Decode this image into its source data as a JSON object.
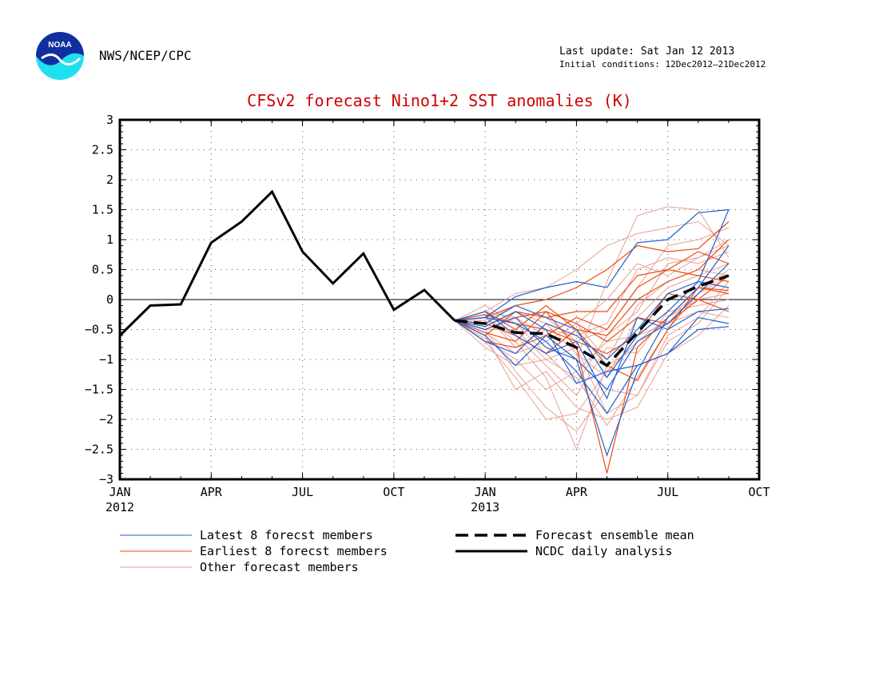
{
  "header": {
    "org": "NWS/NCEP/CPC",
    "last_update": "Last update: Sat Jan 12 2013",
    "initial_conditions": "Initial conditions: 12Dec2012–21Dec2012",
    "logo_text": "NOAA"
  },
  "chart_data": {
    "type": "line",
    "title": "CFSv2 forecast Nino1+2 SST anomalies (K)",
    "xlabel": "",
    "ylabel": "",
    "ylim": [
      -3,
      3
    ],
    "yticks": [
      -3,
      -2.5,
      -2,
      -1.5,
      -1,
      -0.5,
      0,
      0.5,
      1,
      1.5,
      2,
      2.5,
      3
    ],
    "ytick_labels": [
      "−3",
      "−2.5",
      "−2",
      "−1.5",
      "−1",
      "−0.5",
      "0",
      "0.5",
      "1",
      "1.5",
      "2",
      "2.5",
      "3"
    ],
    "xlim": [
      0,
      21
    ],
    "xticks": [
      {
        "x": 0,
        "label": "JAN",
        "year": "2012"
      },
      {
        "x": 3,
        "label": "APR"
      },
      {
        "x": 6,
        "label": "JUL"
      },
      {
        "x": 9,
        "label": "OCT"
      },
      {
        "x": 12,
        "label": "JAN",
        "year": "2013"
      },
      {
        "x": 15,
        "label": "APR"
      },
      {
        "x": 18,
        "label": "JUL"
      },
      {
        "x": 21,
        "label": "OCT"
      }
    ],
    "grid": true,
    "zero_line": true,
    "legend": [
      {
        "label": "Latest 8 forecst members",
        "color": "#1f5fd0",
        "style": "thin"
      },
      {
        "label": "Earliest 8 forecst members",
        "color": "#ee4a10",
        "style": "thin"
      },
      {
        "label": "Other forecast members",
        "color": "#e8a090",
        "style": "thin"
      },
      {
        "label": "Forecast ensemble mean",
        "color": "#000000",
        "style": "dashed"
      },
      {
        "label": "NCDC daily analysis",
        "color": "#000000",
        "style": "thick"
      }
    ],
    "series": [
      {
        "name": "NCDC daily analysis",
        "x": [
          0,
          1,
          2,
          3,
          4,
          5,
          6,
          7,
          8,
          9,
          10,
          11
        ],
        "values": [
          -0.6,
          -0.1,
          -0.08,
          0.95,
          1.3,
          1.8,
          0.8,
          0.27,
          0.77,
          -0.17,
          0.16,
          -0.35
        ]
      },
      {
        "name": "Forecast ensemble mean",
        "x": [
          11,
          12,
          13,
          14,
          15,
          16,
          17,
          18,
          19,
          20
        ],
        "values": [
          -0.35,
          -0.4,
          -0.55,
          -0.57,
          -0.8,
          -1.1,
          -0.55,
          0.0,
          0.22,
          0.4
        ]
      }
    ],
    "members": {
      "x": [
        11,
        12,
        13,
        14,
        15,
        16,
        17,
        18,
        19,
        20
      ],
      "latest": [
        [
          -0.35,
          -0.4,
          -0.1,
          -0.3,
          -0.5,
          -1.3,
          -0.6,
          -0.2,
          0.3,
          1.5
        ],
        [
          -0.35,
          -0.3,
          0.05,
          0.2,
          0.3,
          0.2,
          0.95,
          1.0,
          1.45,
          1.5
        ],
        [
          -0.35,
          -0.6,
          -1.1,
          -0.6,
          -1.0,
          -2.6,
          -1.2,
          -0.3,
          0.2,
          0.9
        ],
        [
          -0.35,
          -0.3,
          -0.4,
          -0.7,
          -1.2,
          -1.9,
          -1.1,
          -0.9,
          -0.3,
          -0.4
        ],
        [
          -0.35,
          -0.5,
          -0.3,
          -0.8,
          -1.0,
          -1.5,
          -0.7,
          -0.4,
          0.1,
          0.6
        ],
        [
          -0.35,
          -0.2,
          -0.6,
          -0.9,
          -0.7,
          -1.65,
          -0.3,
          -0.5,
          -0.2,
          -0.15
        ],
        [
          -0.35,
          -0.45,
          -0.2,
          -0.5,
          -1.4,
          -1.2,
          -1.1,
          -0.9,
          -0.5,
          -0.45
        ],
        [
          -0.35,
          -0.7,
          -0.9,
          -0.4,
          -0.6,
          -1.0,
          -0.5,
          0.1,
          0.3,
          0.2
        ]
      ],
      "earliest": [
        [
          -0.35,
          -0.5,
          -0.3,
          -0.2,
          -0.8,
          -2.9,
          -0.8,
          -0.3,
          0.2,
          0.1
        ],
        [
          -0.35,
          -0.3,
          -0.1,
          0.0,
          0.2,
          0.5,
          0.9,
          0.8,
          0.85,
          1.3
        ],
        [
          -0.35,
          -0.7,
          -0.8,
          -0.6,
          -0.3,
          -0.5,
          0.2,
          0.5,
          0.4,
          0.3
        ],
        [
          -0.35,
          -0.2,
          -0.5,
          -0.1,
          -0.5,
          -1.1,
          -1.35,
          -0.5,
          0.2,
          0.15
        ],
        [
          -0.35,
          -0.4,
          -0.6,
          -0.9,
          -0.5,
          -0.6,
          0.0,
          0.3,
          0.5,
          1.0
        ],
        [
          -0.35,
          -0.6,
          -0.2,
          -0.3,
          -0.2,
          -0.2,
          0.4,
          0.5,
          0.8,
          0.6
        ],
        [
          -0.35,
          -0.25,
          -0.4,
          -0.5,
          -0.7,
          -0.9,
          -0.6,
          0.1,
          0.0,
          -0.2
        ],
        [
          -0.35,
          -0.55,
          -0.7,
          -0.2,
          -0.4,
          -0.7,
          -0.3,
          -0.4,
          0.0,
          0.4
        ]
      ],
      "other": [
        [
          -0.35,
          -0.6,
          -1.5,
          -1.2,
          -1.8,
          -2.0,
          -1.8,
          -0.9,
          -0.6,
          -0.1
        ],
        [
          -0.35,
          -0.5,
          -1.2,
          -1.8,
          -2.2,
          -1.5,
          -1.6,
          -0.6,
          -0.3,
          0.3
        ],
        [
          -0.35,
          -0.3,
          -0.7,
          -1.3,
          -2.5,
          -1.1,
          -0.8,
          -0.3,
          0.1,
          0.5
        ],
        [
          -0.35,
          -0.4,
          -0.3,
          -0.6,
          -1.0,
          0.3,
          1.4,
          1.55,
          1.5,
          0.7
        ],
        [
          -0.35,
          -0.2,
          0.1,
          0.2,
          0.5,
          0.9,
          1.1,
          1.2,
          1.3,
          0.9
        ],
        [
          -0.35,
          -0.8,
          -1.1,
          -1.0,
          -0.8,
          -1.9,
          -1.6,
          -0.7,
          -0.4,
          0.2
        ],
        [
          -0.35,
          -0.1,
          -0.4,
          -0.9,
          -1.4,
          -0.6,
          -0.2,
          0.6,
          0.7,
          1.0
        ],
        [
          -0.35,
          -0.55,
          -0.9,
          -0.7,
          -0.4,
          -1.0,
          -0.1,
          0.3,
          0.5,
          0.4
        ],
        [
          -0.35,
          -0.3,
          -0.6,
          -1.1,
          -1.6,
          -0.8,
          -0.9,
          -0.2,
          -0.1,
          0.0
        ],
        [
          -0.35,
          -0.45,
          -0.2,
          -0.4,
          -0.9,
          -1.3,
          -0.3,
          0.2,
          0.4,
          0.6
        ],
        [
          -0.35,
          -0.65,
          -1.0,
          -1.5,
          -1.2,
          -0.7,
          -0.6,
          -0.4,
          -0.2,
          -0.3
        ],
        [
          -0.35,
          -0.25,
          -0.8,
          -0.5,
          -0.6,
          -0.4,
          0.5,
          0.7,
          0.6,
          0.8
        ],
        [
          -0.35,
          -0.5,
          -0.5,
          -1.0,
          -1.3,
          -2.1,
          -1.3,
          -0.5,
          0.1,
          0.4
        ],
        [
          -0.35,
          -0.35,
          -0.1,
          -0.3,
          -0.7,
          -0.5,
          0.2,
          0.9,
          1.0,
          1.2
        ],
        [
          -0.35,
          -0.7,
          -1.3,
          -2.0,
          -1.9,
          -1.2,
          -0.7,
          -0.3,
          0.0,
          0.1
        ],
        [
          -0.35,
          -0.2,
          -0.3,
          -0.2,
          -0.4,
          0.0,
          0.6,
          0.4,
          0.7,
          0.9
        ]
      ]
    }
  }
}
